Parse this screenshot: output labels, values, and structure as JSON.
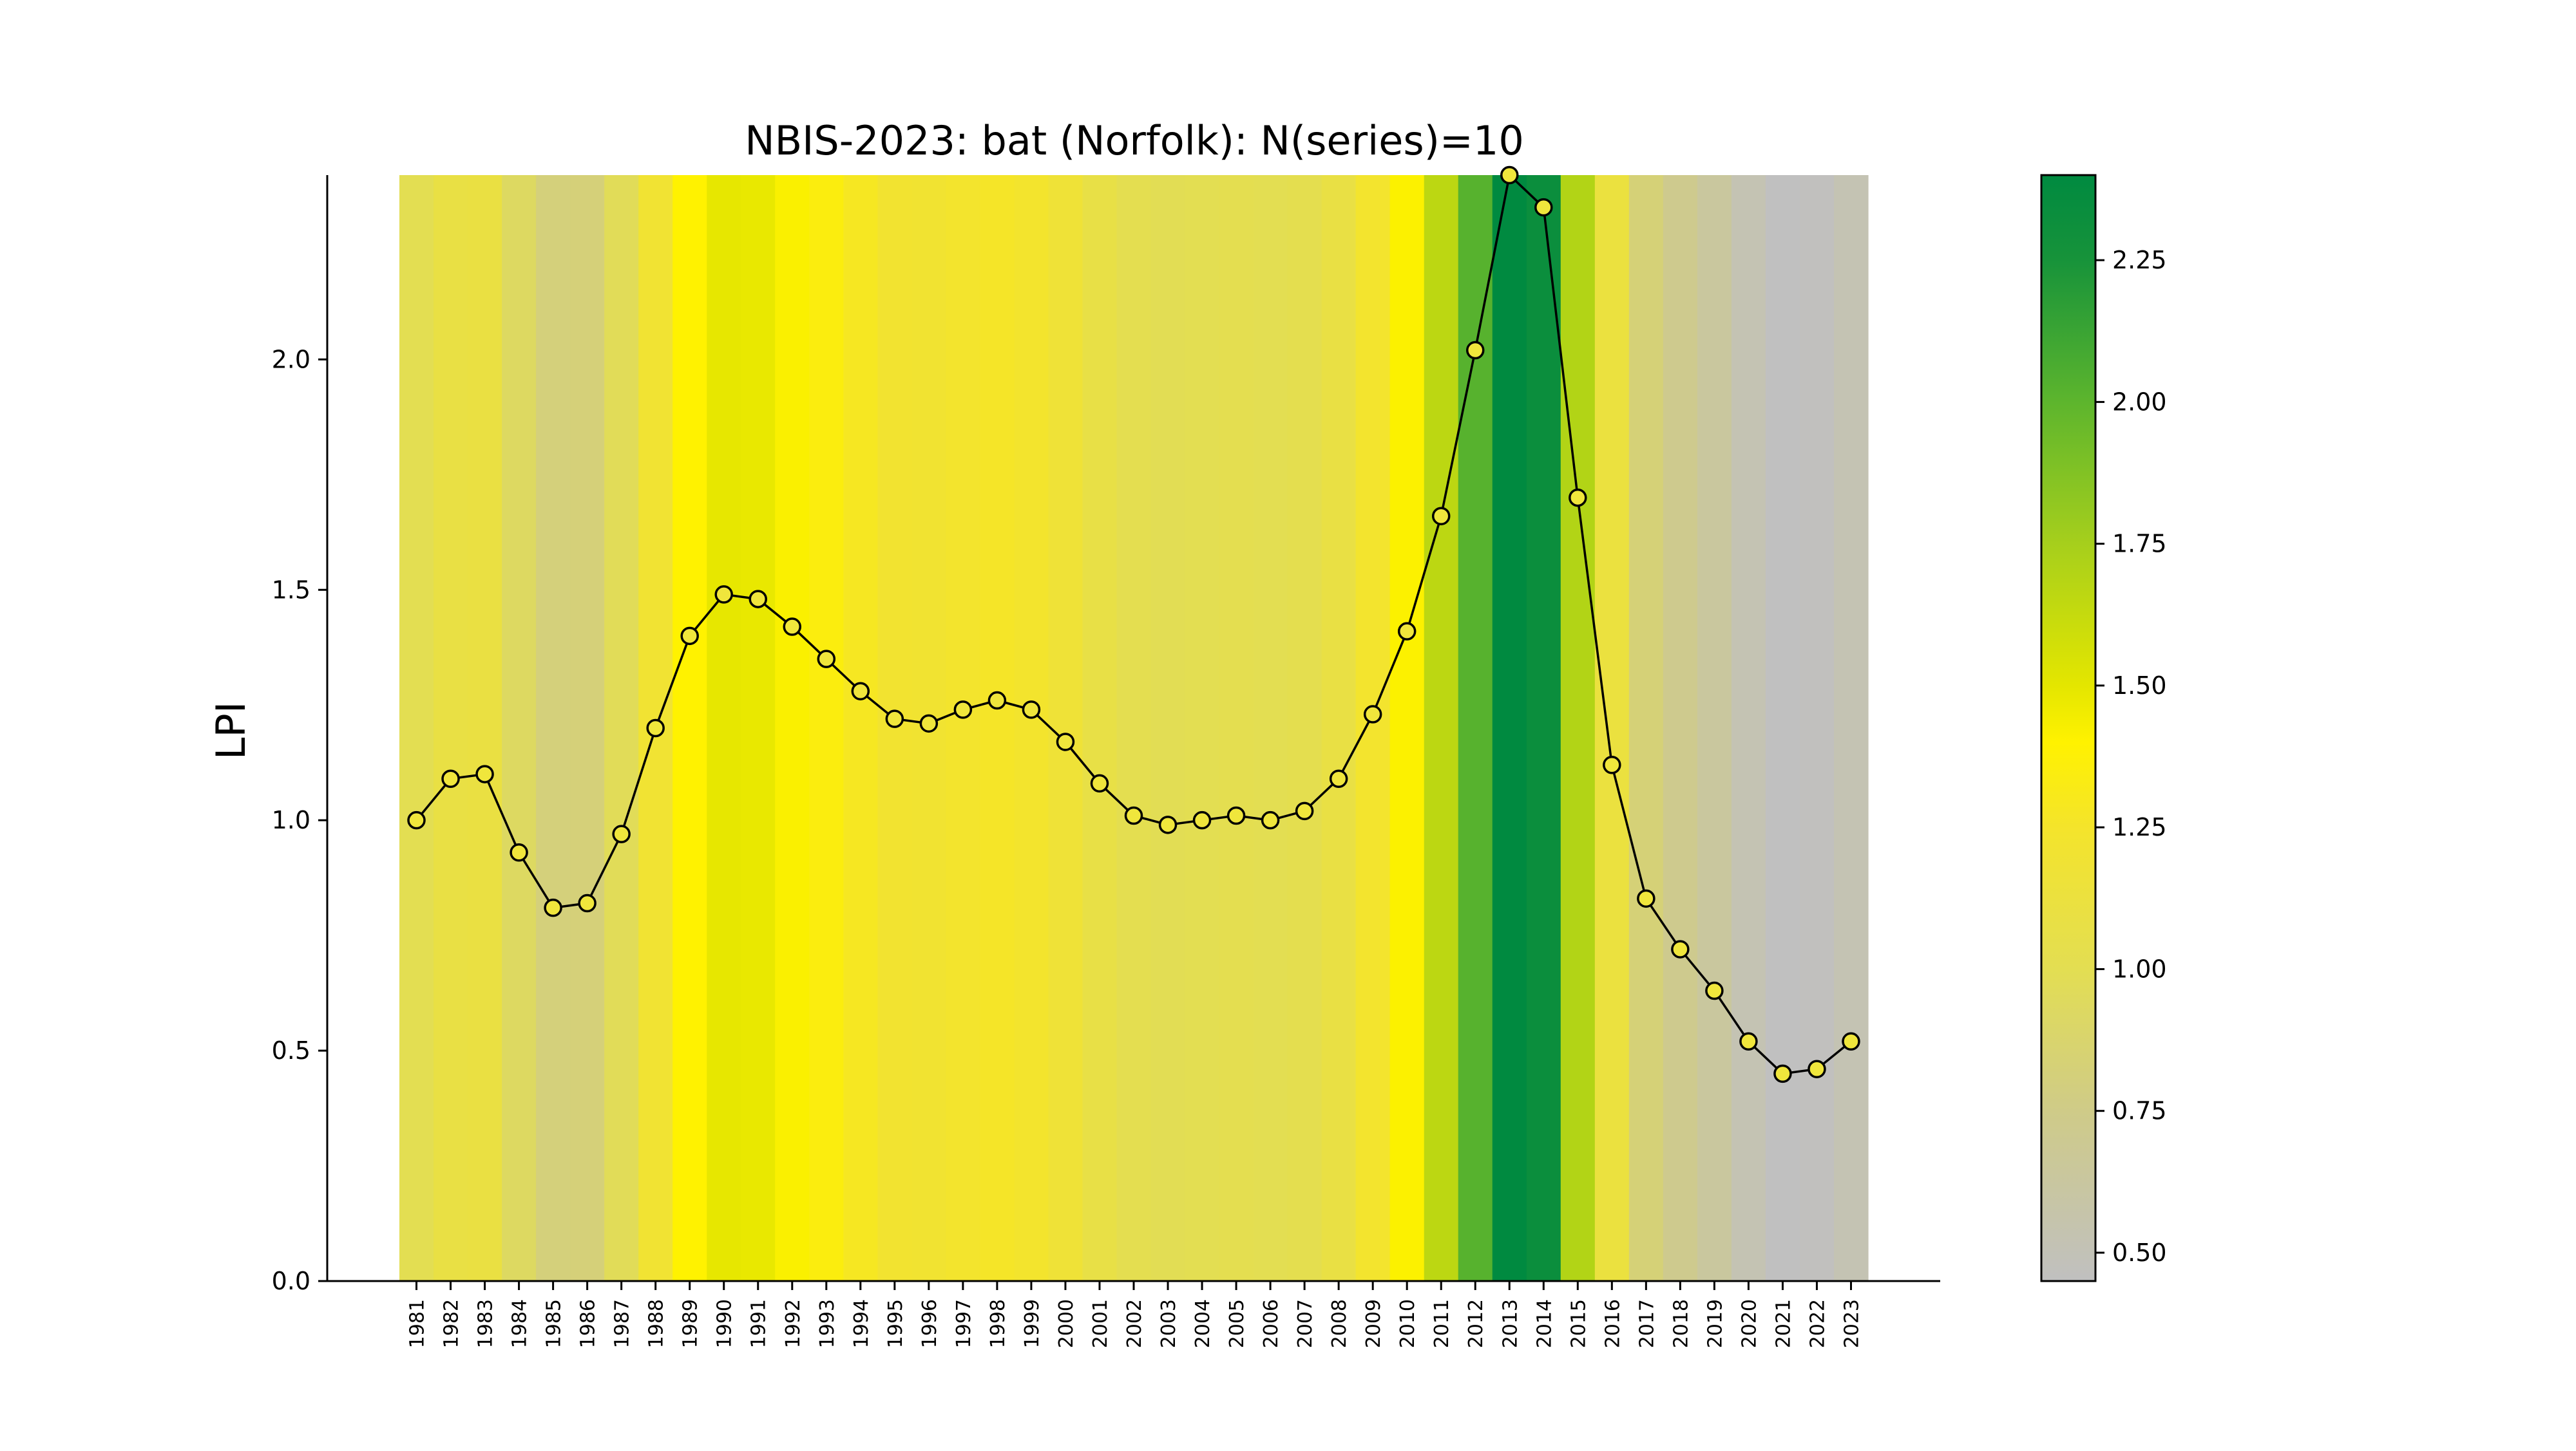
{
  "chart_data": {
    "type": "line",
    "title": "NBIS-2023: bat (Norfolk): N(series)=10",
    "xlabel": "",
    "ylabel": "LPI",
    "ylim": [
      0,
      2.4
    ],
    "yticks": [
      "0.0",
      "0.5",
      "1.0",
      "1.5",
      "2.0"
    ],
    "grid": false,
    "legend": "none",
    "background": "vertical year bands colored by LPI value via colorbar",
    "series": [
      {
        "x": [
          "1981",
          "1982",
          "1983",
          "1984",
          "1985",
          "1986",
          "1987",
          "1988",
          "1989",
          "1990",
          "1991",
          "1992",
          "1993",
          "1994",
          "1995",
          "1996",
          "1997",
          "1998",
          "1999",
          "2000",
          "2001",
          "2002",
          "2003",
          "2004",
          "2005",
          "2006",
          "2007",
          "2008",
          "2009",
          "2010",
          "2011",
          "2012",
          "2013",
          "2014",
          "2015",
          "2016",
          "2017",
          "2018",
          "2019",
          "2020",
          "2021",
          "2022",
          "2023"
        ],
        "values": [
          1.0,
          1.09,
          1.1,
          0.93,
          0.81,
          0.82,
          0.97,
          1.2,
          1.4,
          1.49,
          1.48,
          1.42,
          1.35,
          1.28,
          1.22,
          1.21,
          1.24,
          1.26,
          1.24,
          1.17,
          1.08,
          1.01,
          0.99,
          1.0,
          1.01,
          1.0,
          1.02,
          1.09,
          1.23,
          1.41,
          1.66,
          2.02,
          2.4,
          2.33,
          1.7,
          1.12,
          0.83,
          0.72,
          0.63,
          0.52,
          0.45,
          0.46,
          0.52
        ],
        "color": "#000000",
        "marker": "circle",
        "marker_face": "#f0e63c"
      }
    ],
    "colorbar": {
      "range": [
        0.45,
        2.4
      ],
      "ticks": [
        "0.50",
        "0.75",
        "1.00",
        "1.25",
        "1.50",
        "1.75",
        "2.00",
        "2.25"
      ],
      "stops": [
        {
          "v": 0.45,
          "color": "#c0c0c0"
        },
        {
          "v": 0.75,
          "color": "#cfcb88"
        },
        {
          "v": 1.0,
          "color": "#e3de52"
        },
        {
          "v": 1.25,
          "color": "#f4e42b"
        },
        {
          "v": 1.4,
          "color": "#fff200"
        },
        {
          "v": 1.5,
          "color": "#e4e600"
        },
        {
          "v": 1.75,
          "color": "#a6cf1c"
        },
        {
          "v": 2.0,
          "color": "#5db52d"
        },
        {
          "v": 2.25,
          "color": "#17933a"
        },
        {
          "v": 2.4,
          "color": "#008a40"
        }
      ]
    }
  }
}
